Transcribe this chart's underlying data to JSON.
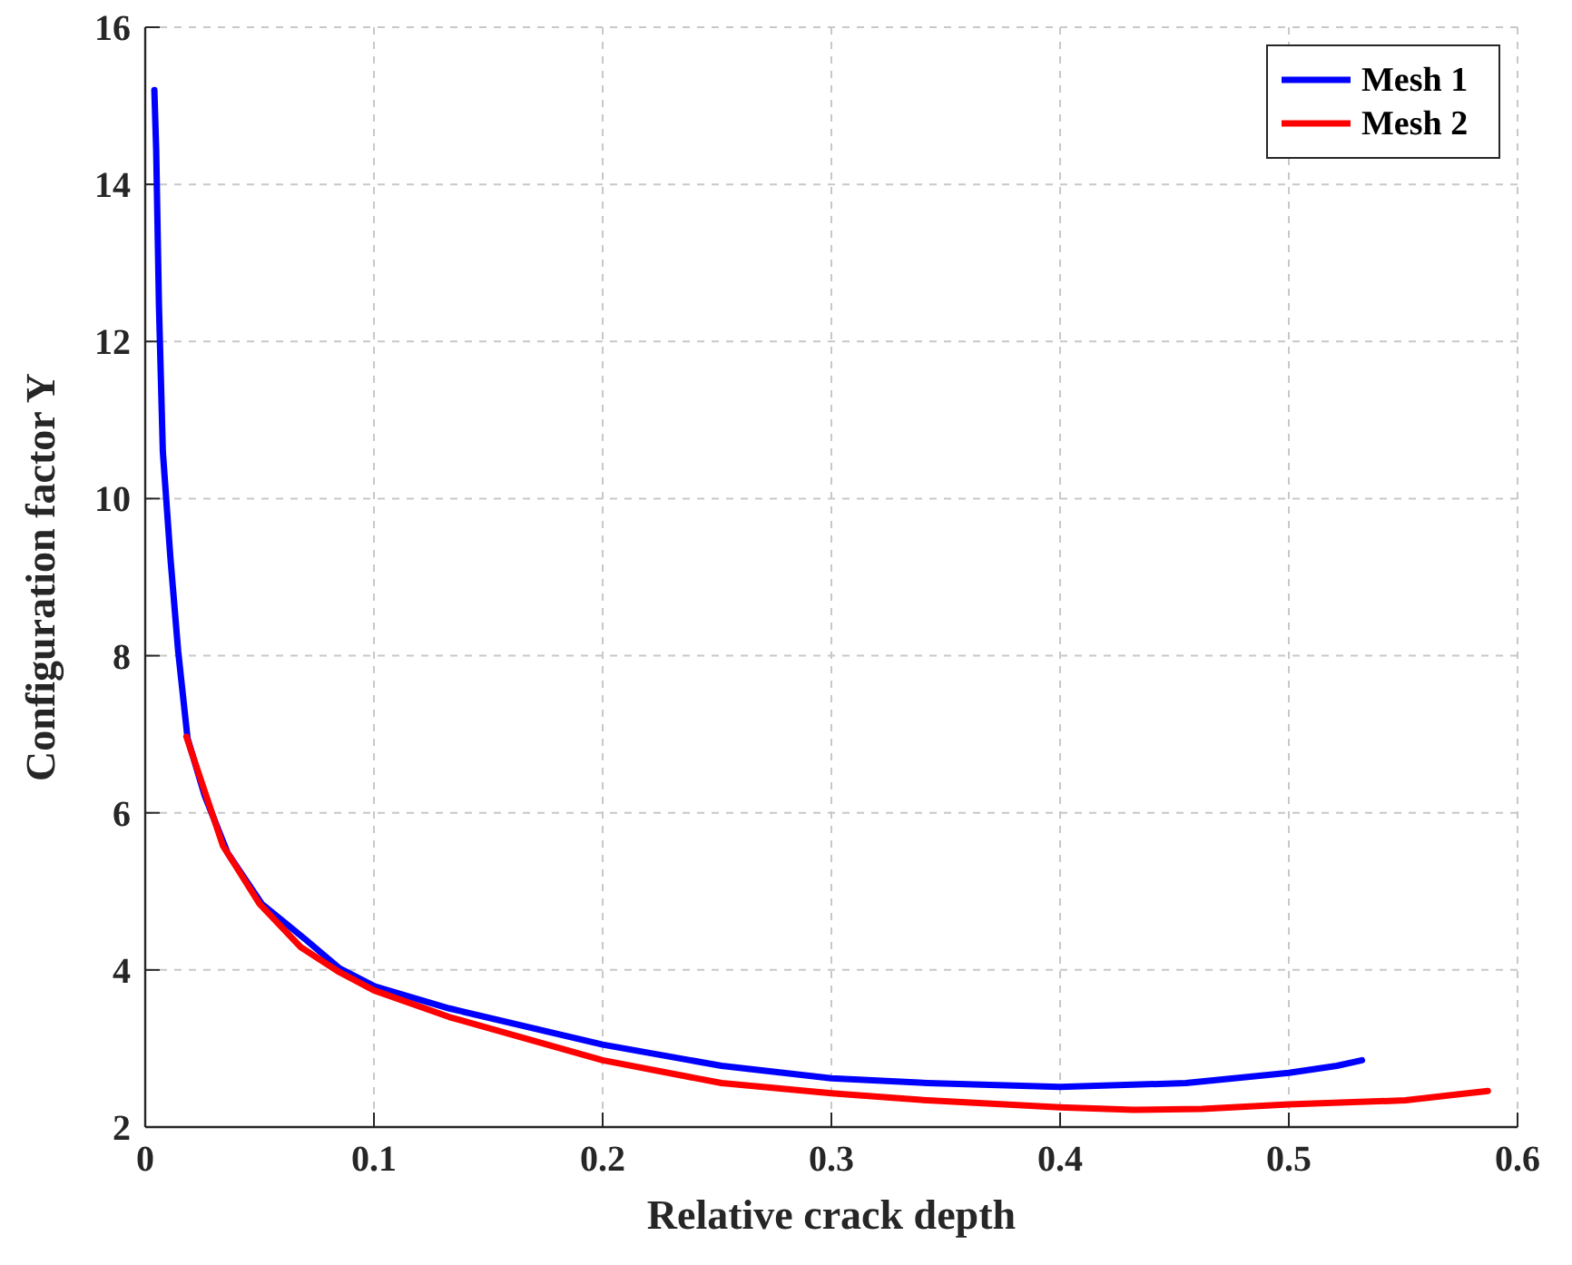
{
  "chart_data": {
    "type": "line",
    "xlabel": "Relative crack depth",
    "ylabel": "Configuration factor Y",
    "xlim": [
      0,
      0.6
    ],
    "ylim": [
      2,
      16
    ],
    "xticks": [
      0,
      0.1,
      0.2,
      0.3,
      0.4,
      0.5,
      0.6
    ],
    "yticks": [
      2,
      4,
      6,
      8,
      10,
      12,
      14,
      16
    ],
    "grid": true,
    "legend": "top right",
    "line_style": "solid",
    "marker": "none",
    "series": [
      {
        "name": "Mesh 1",
        "color": "#0000ff",
        "x": [
          0.004,
          0.0048,
          0.006,
          0.0077,
          0.011,
          0.0144,
          0.0185,
          0.026,
          0.036,
          0.051,
          0.07,
          0.085,
          0.1005,
          0.133,
          0.2,
          0.252,
          0.3,
          0.342,
          0.4,
          0.455,
          0.5,
          0.521,
          0.532
        ],
        "values": [
          15.2,
          14.43,
          12.46,
          10.6,
          9.25,
          8.06,
          6.95,
          6.22,
          5.49,
          4.84,
          4.39,
          4.02,
          3.79,
          3.51,
          3.05,
          2.78,
          2.62,
          2.56,
          2.51,
          2.56,
          2.69,
          2.78,
          2.85
        ]
      },
      {
        "name": "Mesh 2",
        "color": "#ff0000",
        "x": [
          0.018,
          0.034,
          0.05,
          0.068,
          0.085,
          0.1,
          0.133,
          0.2,
          0.252,
          0.3,
          0.342,
          0.4,
          0.432,
          0.462,
          0.5,
          0.551,
          0.572,
          0.587
        ],
        "values": [
          6.97,
          5.58,
          4.84,
          4.29,
          3.97,
          3.74,
          3.4,
          2.85,
          2.56,
          2.43,
          2.34,
          2.25,
          2.22,
          2.23,
          2.29,
          2.34,
          2.41,
          2.46
        ]
      }
    ]
  }
}
